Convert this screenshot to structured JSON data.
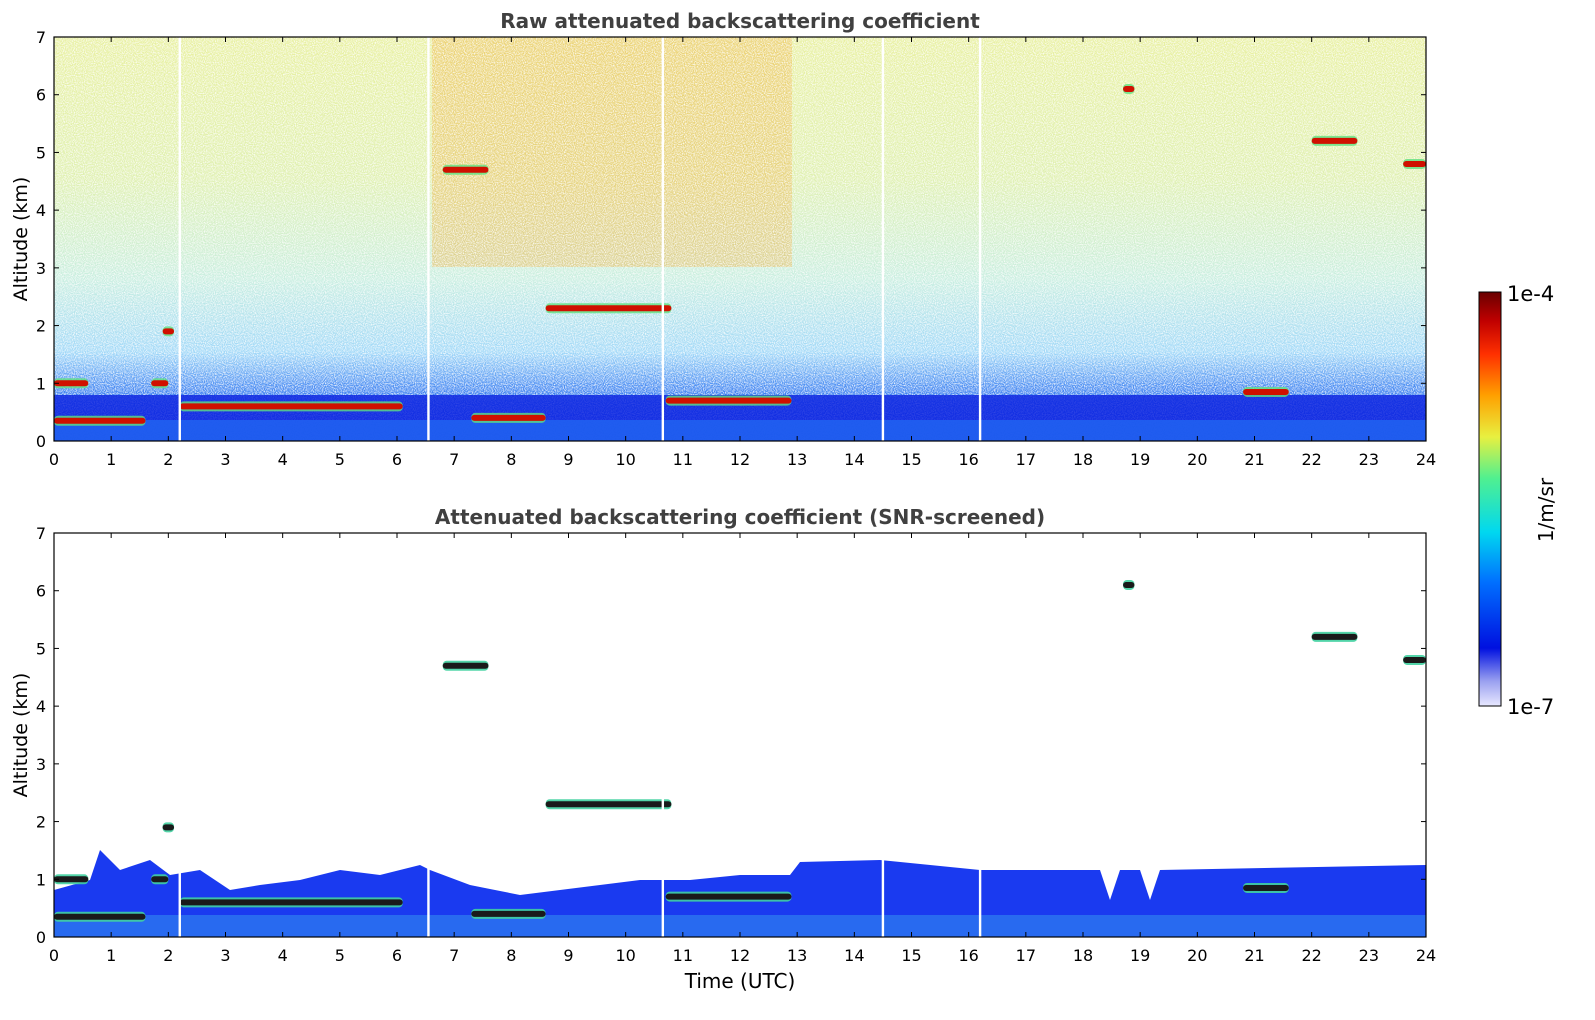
{
  "chart_data": [
    {
      "type": "heatmap",
      "title": "Raw attenuated backscattering coefficient",
      "ylabel": "Altitude (km)",
      "xlabel": "",
      "xlim": [
        0,
        24
      ],
      "ylim": [
        0,
        7
      ],
      "xticks": [
        "0",
        "1",
        "2",
        "3",
        "4",
        "5",
        "6",
        "7",
        "8",
        "9",
        "10",
        "11",
        "12",
        "13",
        "14",
        "15",
        "16",
        "17",
        "18",
        "19",
        "20",
        "21",
        "22",
        "23",
        "24"
      ],
      "yticks": [
        "0",
        "1",
        "2",
        "3",
        "4",
        "5",
        "6",
        "7"
      ],
      "data_gaps_hours": [
        2.2,
        6.55,
        10.65,
        14.5,
        16.2
      ],
      "cloud_features": [
        {
          "t_start": 0.0,
          "t_end": 1.6,
          "alt_km": 0.35
        },
        {
          "t_start": 0.0,
          "t_end": 0.6,
          "alt_km": 1.0
        },
        {
          "t_start": 1.7,
          "t_end": 2.0,
          "alt_km": 1.0
        },
        {
          "t_start": 1.9,
          "t_end": 2.1,
          "alt_km": 1.9
        },
        {
          "t_start": 2.2,
          "t_end": 6.1,
          "alt_km": 0.6
        },
        {
          "t_start": 6.8,
          "t_end": 7.6,
          "alt_km": 4.7
        },
        {
          "t_start": 7.3,
          "t_end": 8.6,
          "alt_km": 0.4
        },
        {
          "t_start": 8.6,
          "t_end": 10.8,
          "alt_km": 2.3
        },
        {
          "t_start": 10.7,
          "t_end": 12.9,
          "alt_km": 0.7
        },
        {
          "t_start": 18.7,
          "t_end": 18.9,
          "alt_km": 6.1
        },
        {
          "t_start": 20.8,
          "t_end": 21.6,
          "alt_km": 0.85
        },
        {
          "t_start": 22.0,
          "t_end": 22.8,
          "alt_km": 5.2
        },
        {
          "t_start": 23.6,
          "t_end": 24.0,
          "alt_km": 4.8
        }
      ]
    },
    {
      "type": "heatmap",
      "title": "Attenuated backscattering coefficient (SNR-screened)",
      "ylabel": "Altitude (km)",
      "xlabel": "Time (UTC)",
      "xlim": [
        0,
        24
      ],
      "ylim": [
        0,
        7
      ],
      "xticks": [
        "0",
        "1",
        "2",
        "3",
        "4",
        "5",
        "6",
        "7",
        "8",
        "9",
        "10",
        "11",
        "12",
        "13",
        "14",
        "15",
        "16",
        "17",
        "18",
        "19",
        "20",
        "21",
        "22",
        "23",
        "24"
      ],
      "yticks": [
        "0",
        "1",
        "2",
        "3",
        "4",
        "5",
        "6",
        "7"
      ],
      "data_gaps_hours": [
        2.2,
        6.55,
        10.65,
        14.5,
        16.2
      ]
    }
  ],
  "colorbar": {
    "max_label": "1e-4",
    "min_label": "1e-7",
    "unit_label": "1/m/sr",
    "scale": "log",
    "colormap": [
      "#ffffff",
      "#b0b4f0",
      "#0010e0",
      "#0090ff",
      "#00e0f0",
      "#60f080",
      "#e8f040",
      "#ffa000",
      "#ff3000",
      "#c00000",
      "#7a0000"
    ]
  }
}
